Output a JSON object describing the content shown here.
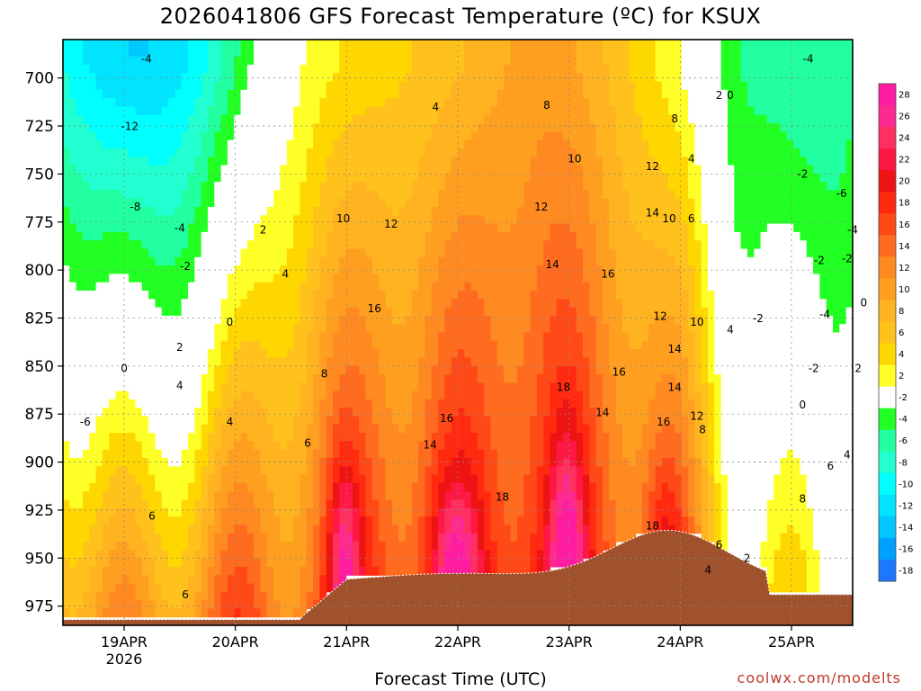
{
  "chart_data": {
    "type": "heatmap",
    "title": "2026041806 GFS Forecast Temperature (ºC) for KSUX",
    "xlabel": "Forecast Time (UTC)",
    "credit": "coolwx.com/modelts",
    "y_ticks": [
      "700",
      "725",
      "750",
      "775",
      "800",
      "825",
      "850",
      "875",
      "900",
      "925",
      "950",
      "975"
    ],
    "y_values": [
      700,
      725,
      750,
      775,
      800,
      825,
      850,
      875,
      900,
      925,
      950,
      975
    ],
    "ylim": [
      680,
      985
    ],
    "x_ticks": [
      "19APR",
      "20APR",
      "21APR",
      "22APR",
      "23APR",
      "24APR",
      "25APR"
    ],
    "x_year": "2026",
    "xlim_days": [
      -0.55,
      6.55
    ],
    "colorbar": {
      "labels": [
        "28",
        "26",
        "24",
        "22",
        "20",
        "18",
        "16",
        "14",
        "12",
        "10",
        "8",
        "6",
        "4",
        "2",
        "-2",
        "-4",
        "-6",
        "-8",
        "-10",
        "-12",
        "-14",
        "-16",
        "-18"
      ],
      "colors": [
        "#ff1ca0",
        "#ff2a90",
        "#ff3060",
        "#ff1844",
        "#ee1414",
        "#ff2a10",
        "#ff4a18",
        "#ff6c20",
        "#ff8a22",
        "#ff9f20",
        "#ffb320",
        "#ffc21c",
        "#ffd700",
        "#ffff28",
        "#ffffff",
        "#22ff22",
        "#22ffa0",
        "#22ffd0",
        "#00ffff",
        "#00e4ff",
        "#00c8ff",
        "#00a0ff",
        "#1e78ff"
      ]
    },
    "contour_labels": [
      {
        "t": "-4",
        "d": 0.2,
        "p": 692
      },
      {
        "t": "-12",
        "d": 0.05,
        "p": 727
      },
      {
        "t": "-8",
        "d": 0.1,
        "p": 769
      },
      {
        "t": "-4",
        "d": 0.5,
        "p": 780
      },
      {
        "t": "-2",
        "d": 0.55,
        "p": 800
      },
      {
        "t": "2",
        "d": 0.5,
        "p": 842
      },
      {
        "t": "0",
        "d": 0.0,
        "p": 853
      },
      {
        "t": "4",
        "d": 0.5,
        "p": 862
      },
      {
        "t": "-6",
        "d": -0.35,
        "p": 881
      },
      {
        "t": "6",
        "d": 0.25,
        "p": 930
      },
      {
        "t": "6",
        "d": 0.55,
        "p": 971
      },
      {
        "t": "0",
        "d": 0.95,
        "p": 829
      },
      {
        "t": "4",
        "d": 0.95,
        "p": 881
      },
      {
        "t": "2",
        "d": 1.25,
        "p": 781
      },
      {
        "t": "4",
        "d": 1.45,
        "p": 804
      },
      {
        "t": "6",
        "d": 1.65,
        "p": 892
      },
      {
        "t": "8",
        "d": 1.8,
        "p": 856
      },
      {
        "t": "10",
        "d": 1.97,
        "p": 775
      },
      {
        "t": "12",
        "d": 2.4,
        "p": 778
      },
      {
        "t": "4",
        "d": 2.8,
        "p": 717
      },
      {
        "t": "16",
        "d": 2.25,
        "p": 822
      },
      {
        "t": "14",
        "d": 2.75,
        "p": 893
      },
      {
        "t": "16",
        "d": 2.9,
        "p": 879
      },
      {
        "t": "18",
        "d": 3.4,
        "p": 920
      },
      {
        "t": "8",
        "d": 3.8,
        "p": 716
      },
      {
        "t": "10",
        "d": 4.05,
        "p": 744
      },
      {
        "t": "12",
        "d": 3.75,
        "p": 769
      },
      {
        "t": "14",
        "d": 3.85,
        "p": 799
      },
      {
        "t": "16",
        "d": 4.35,
        "p": 804
      },
      {
        "t": "18",
        "d": 3.95,
        "p": 863
      },
      {
        "t": "16",
        "d": 4.45,
        "p": 855
      },
      {
        "t": "14",
        "d": 4.3,
        "p": 876
      },
      {
        "t": "12",
        "d": 4.75,
        "p": 748
      },
      {
        "t": "14",
        "d": 4.75,
        "p": 772
      },
      {
        "t": "10",
        "d": 4.9,
        "p": 775
      },
      {
        "t": "8",
        "d": 4.95,
        "p": 723
      },
      {
        "t": "6",
        "d": 5.1,
        "p": 775
      },
      {
        "t": "4",
        "d": 5.1,
        "p": 744
      },
      {
        "t": "2",
        "d": 5.35,
        "p": 711
      },
      {
        "t": "0",
        "d": 5.45,
        "p": 711
      },
      {
        "t": "12",
        "d": 4.82,
        "p": 826
      },
      {
        "t": "10",
        "d": 5.15,
        "p": 829
      },
      {
        "t": "14",
        "d": 4.95,
        "p": 843
      },
      {
        "t": "14",
        "d": 4.95,
        "p": 863
      },
      {
        "t": "16",
        "d": 4.85,
        "p": 881
      },
      {
        "t": "12",
        "d": 5.15,
        "p": 878
      },
      {
        "t": "8",
        "d": 5.2,
        "p": 885
      },
      {
        "t": "18",
        "d": 4.75,
        "p": 935
      },
      {
        "t": "6",
        "d": 5.35,
        "p": 945
      },
      {
        "t": "4",
        "d": 5.25,
        "p": 958
      },
      {
        "t": "2",
        "d": 5.6,
        "p": 952
      },
      {
        "t": "-2",
        "d": 5.7,
        "p": 827
      },
      {
        "t": "4",
        "d": 5.45,
        "p": 833
      },
      {
        "t": "-4",
        "d": 6.15,
        "p": 692
      },
      {
        "t": "-2",
        "d": 6.1,
        "p": 752
      },
      {
        "t": "-6",
        "d": 6.45,
        "p": 762
      },
      {
        "t": "-4",
        "d": 6.55,
        "p": 781
      },
      {
        "t": "-2",
        "d": 6.25,
        "p": 797
      },
      {
        "t": "-2",
        "d": 6.5,
        "p": 796
      },
      {
        "t": "-4",
        "d": 6.3,
        "p": 825
      },
      {
        "t": "-2",
        "d": 6.2,
        "p": 853
      },
      {
        "t": "0",
        "d": 6.65,
        "p": 819
      },
      {
        "t": "2",
        "d": 6.6,
        "p": 853
      },
      {
        "t": "0",
        "d": 6.1,
        "p": 872
      },
      {
        "t": "4",
        "d": 6.5,
        "p": 898
      },
      {
        "t": "6",
        "d": 6.35,
        "p": 904
      },
      {
        "t": "8",
        "d": 6.1,
        "p": 921
      }
    ]
  }
}
